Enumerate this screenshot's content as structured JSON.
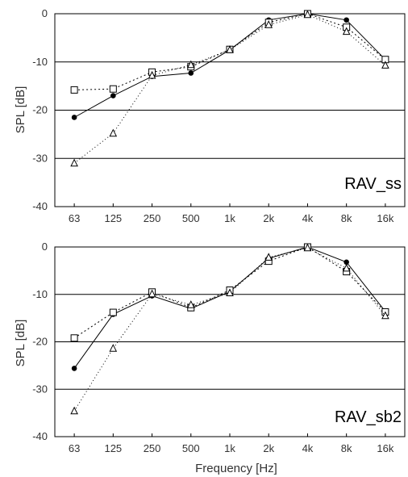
{
  "colors": {
    "background": "#ffffff",
    "axis": "#000000",
    "text": "#333333"
  },
  "chart_data": [
    {
      "type": "line",
      "panel_label": "RAV_ss",
      "categories": [
        "63",
        "125",
        "250",
        "500",
        "1k",
        "2k",
        "4k",
        "8k",
        "16k"
      ],
      "ylabel": "SPL [dB]",
      "xlabel": "",
      "ylim": [
        -40,
        0
      ],
      "yticks": [
        0,
        -10,
        -20,
        -30,
        -40
      ],
      "grid": "horizontal",
      "series": [
        {
          "marker": "filled-circle",
          "line_style": "solid",
          "values": [
            -21.5,
            -17,
            -13,
            -12.3,
            -7.5,
            -1.3,
            0,
            -1.3,
            -9.5
          ]
        },
        {
          "marker": "open-square",
          "line_style": "dotted",
          "values": [
            -15.8,
            -15.6,
            -12.1,
            -11,
            -7.4,
            -1.8,
            0,
            -2.8,
            -9.5
          ]
        },
        {
          "marker": "open-triangle",
          "line_style": "dotted",
          "values": [
            -31,
            -24.8,
            -12.8,
            -10.6,
            -7.5,
            -2.3,
            -0.2,
            -3.7,
            -10.7
          ]
        }
      ]
    },
    {
      "type": "line",
      "panel_label": "RAV_sb2",
      "categories": [
        "63",
        "125",
        "250",
        "500",
        "1k",
        "2k",
        "4k",
        "8k",
        "16k"
      ],
      "ylabel": "SPL [dB]",
      "xlabel": "Frequency [Hz]",
      "ylim": [
        -40,
        0
      ],
      "yticks": [
        0,
        -10,
        -20,
        -30,
        -40
      ],
      "grid": "horizontal",
      "series": [
        {
          "marker": "filled-circle",
          "line_style": "solid",
          "values": [
            -25.6,
            -14.2,
            -10.3,
            -13,
            -9.4,
            -2.4,
            0,
            -3.2,
            -13.6
          ]
        },
        {
          "marker": "open-square",
          "line_style": "dotted",
          "values": [
            -19.2,
            -13.8,
            -9.5,
            -12.8,
            -9.1,
            -3,
            0,
            -5.2,
            -13.7
          ]
        },
        {
          "marker": "open-triangle",
          "line_style": "dotted",
          "values": [
            -34.6,
            -21.4,
            -9.9,
            -12.2,
            -9.7,
            -2.2,
            -0.2,
            -4.5,
            -14.5
          ]
        }
      ]
    }
  ]
}
